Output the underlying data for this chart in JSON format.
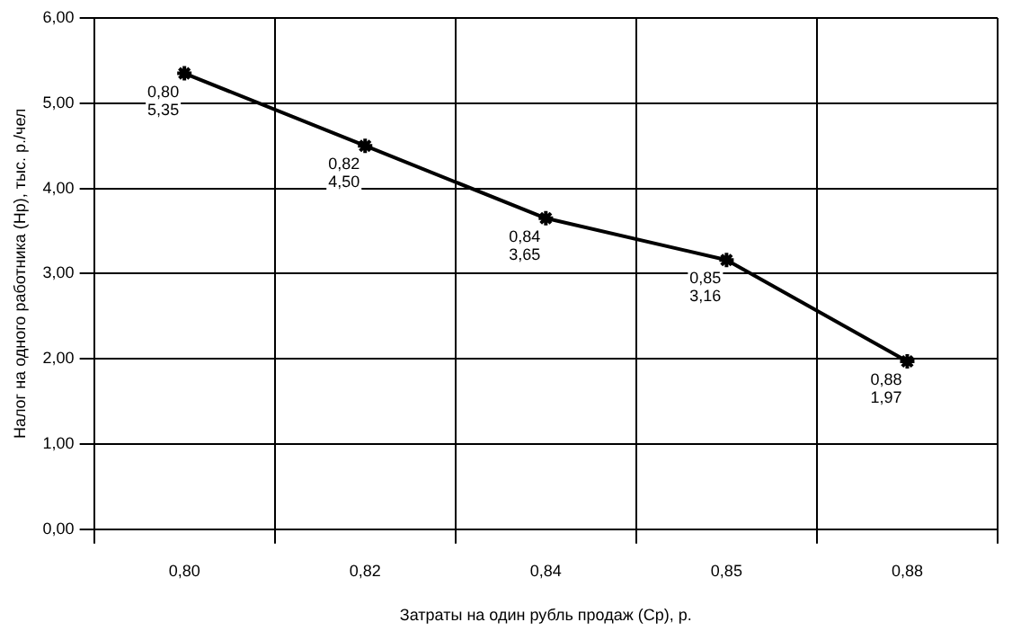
{
  "chart_data": {
    "type": "line",
    "xlabel": "Затраты на один рубль продаж (Ср), р.",
    "ylabel": "Налог на одного работника (Нр), тыс. р./чел",
    "categories": [
      "0,80",
      "0,82",
      "0,84",
      "0,85",
      "0,88"
    ],
    "series": [
      {
        "color": "#000000",
        "values": [
          5.35,
          4.5,
          3.65,
          3.16,
          1.97
        ],
        "value_labels": [
          "0,80\n5,35",
          "0,82\n4,50",
          "0,84\n3,65",
          "0,85\n3,16",
          "0,88\n1,97"
        ]
      }
    ],
    "ylim": [
      0,
      6
    ],
    "yticks": [
      {
        "value": 0,
        "label": "0,00"
      },
      {
        "value": 1,
        "label": "1,00"
      },
      {
        "value": 2,
        "label": "2,00"
      },
      {
        "value": 3,
        "label": "3,00"
      },
      {
        "value": 4,
        "label": "4,00"
      },
      {
        "value": 5,
        "label": "5,00"
      },
      {
        "value": 6,
        "label": "6,00"
      }
    ],
    "grid": true,
    "legend": false,
    "marker": "cross",
    "line_style": "solid"
  }
}
